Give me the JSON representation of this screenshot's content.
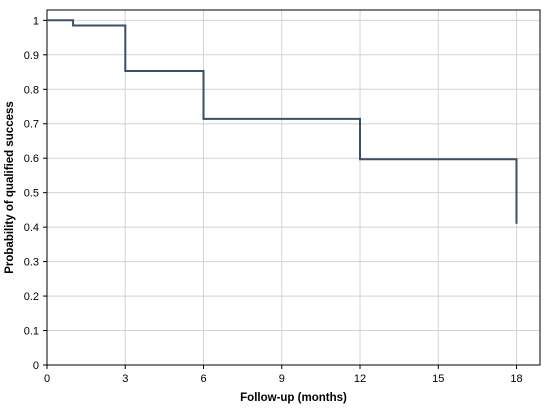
{
  "chart_data": {
    "type": "line",
    "subtype": "step",
    "title": "",
    "xlabel": "Follow-up (months)",
    "ylabel": "Probability of qualified success",
    "xlim": [
      0,
      18.9
    ],
    "ylim": [
      0,
      1.03
    ],
    "x_ticks": [
      0,
      3,
      6,
      9,
      12,
      15,
      18
    ],
    "x_tick_labels": [
      "0",
      "3",
      "6",
      "9",
      "12",
      "15",
      "18"
    ],
    "y_ticks": [
      0,
      0.1,
      0.2,
      0.3,
      0.4,
      0.5,
      0.6,
      0.7,
      0.8,
      0.9,
      1
    ],
    "y_tick_labels": [
      "0",
      "0.1",
      "0.2",
      "0.3",
      "0.4",
      "0.5",
      "0.6",
      "0.7",
      "0.8",
      "0.9",
      "1"
    ],
    "grid": true,
    "legend": "none",
    "series": [
      {
        "color": "#3a5068",
        "x": [
          0,
          1,
          1,
          3,
          3,
          6,
          6,
          12,
          12,
          18,
          18
        ],
        "y": [
          1.0,
          1.0,
          0.985,
          0.985,
          0.853,
          0.853,
          0.714,
          0.714,
          0.597,
          0.597,
          0.41
        ]
      }
    ],
    "colors": {
      "background": "#ffffff",
      "grid": "#d3d3d3",
      "axis": "#000000",
      "line": "#3a5068"
    }
  }
}
